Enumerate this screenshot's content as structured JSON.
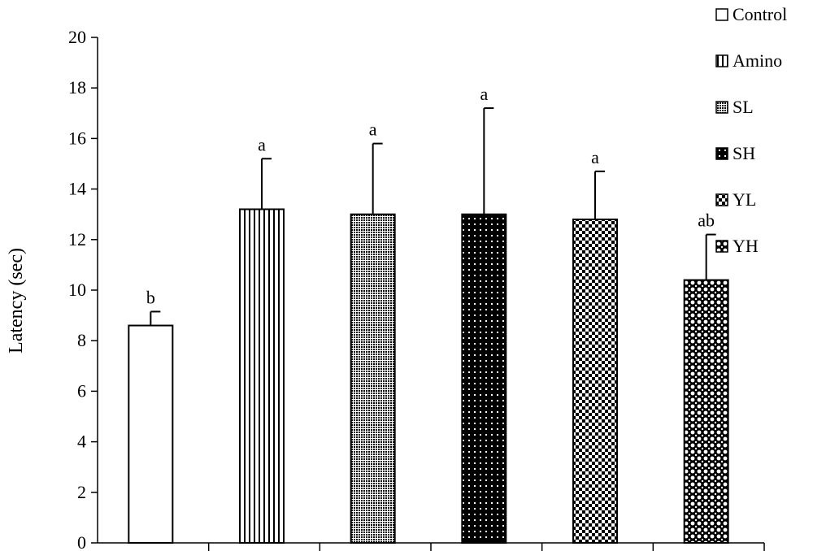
{
  "chart_data": {
    "type": "bar",
    "ylabel": "Latency (sec)",
    "ylim": [
      0,
      20
    ],
    "yticks": [
      0,
      2,
      4,
      6,
      8,
      10,
      12,
      14,
      16,
      18,
      20
    ],
    "grid": false,
    "legend_position": "top-right",
    "categories": [
      "Control",
      "Amino",
      "SL",
      "SH",
      "YL",
      "YH"
    ],
    "values": [
      8.6,
      13.2,
      13.0,
      13.0,
      12.8,
      10.4
    ],
    "errors": [
      0.55,
      2.0,
      2.8,
      4.2,
      1.9,
      1.8
    ],
    "significance": [
      "b",
      "a",
      "a",
      "a",
      "a",
      "ab"
    ],
    "patterns": [
      "blank",
      "vertical-lines",
      "fine-dots",
      "dark-dots",
      "checker",
      "circle-dots"
    ],
    "bar_color": "#000000"
  }
}
